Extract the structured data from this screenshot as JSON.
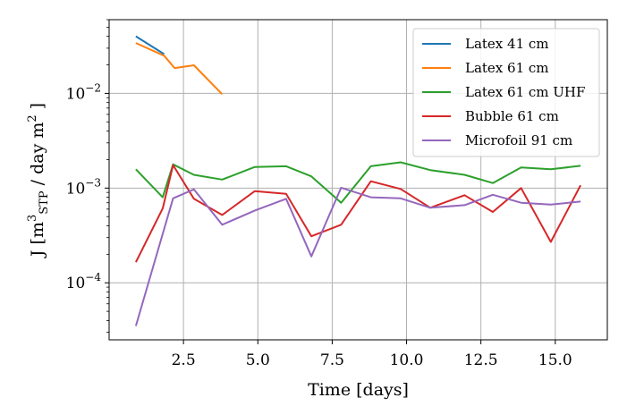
{
  "chart_data": {
    "type": "line",
    "title": "",
    "xlabel": "Time [days]",
    "ylabel": "J [m3STP / day m2 ]",
    "ylabel_parts": {
      "prefix": "J [m",
      "sup_stp": "3",
      "sub_stp": "STP",
      "middle": " / day m",
      "sup_m": "2",
      "suffix": " ]"
    },
    "xlim": [
      0.0,
      16.75
    ],
    "ylim": [
      2.5e-05,
      0.06
    ],
    "yscale": "log",
    "grid": true,
    "legend_position": "top-right",
    "x_ticks": [
      2.5,
      5.0,
      7.5,
      10.0,
      12.5,
      15.0
    ],
    "x_tick_labels": [
      "2.5",
      "5.0",
      "7.5",
      "10.0",
      "12.5",
      "15.0"
    ],
    "y_ticks": [
      {
        "value": 0.01,
        "base": "10",
        "exp": "−2"
      },
      {
        "value": 0.001,
        "base": "10",
        "exp": "−3"
      },
      {
        "value": 0.0001,
        "base": "10",
        "exp": "−4"
      }
    ],
    "series": [
      {
        "name": "Latex 41 cm",
        "color": "#1f77b4",
        "x": [
          0.9,
          1.85
        ],
        "y": [
          0.04,
          0.026
        ]
      },
      {
        "name": "Latex 61 cm",
        "color": "#ff7f0e",
        "x": [
          0.9,
          1.85,
          2.2,
          2.85,
          3.8
        ],
        "y": [
          0.034,
          0.025,
          0.0185,
          0.0198,
          0.0098
        ]
      },
      {
        "name": "Latex 61 cm UHF",
        "color": "#2ca02c",
        "x": [
          0.9,
          1.8,
          2.15,
          2.85,
          3.8,
          4.9,
          5.95,
          6.8,
          7.8,
          8.8,
          9.8,
          10.8,
          11.95,
          12.9,
          13.85,
          14.85,
          15.85
        ],
        "y": [
          0.00158,
          0.0008,
          0.00178,
          0.00138,
          0.00123,
          0.00167,
          0.0017,
          0.00133,
          0.0007,
          0.0017,
          0.00187,
          0.00155,
          0.00138,
          0.00113,
          0.00165,
          0.00158,
          0.00172
        ]
      },
      {
        "name": "Bubble 61 cm",
        "color": "#d62728",
        "x": [
          0.9,
          1.8,
          2.15,
          2.85,
          3.8,
          4.9,
          5.95,
          6.8,
          7.8,
          8.8,
          9.8,
          10.8,
          11.95,
          12.9,
          13.85,
          14.85,
          15.85
        ],
        "y": [
          0.000165,
          0.00061,
          0.00175,
          0.00077,
          0.00052,
          0.00093,
          0.00087,
          0.00031,
          0.00041,
          0.00118,
          0.00098,
          0.00062,
          0.00084,
          0.00056,
          0.001,
          0.00027,
          0.00107
        ]
      },
      {
        "name": "Microfoil 91 cm",
        "color": "#9467bd",
        "x": [
          0.9,
          2.15,
          2.85,
          3.8,
          4.9,
          5.95,
          6.8,
          7.8,
          8.8,
          9.8,
          10.8,
          11.95,
          12.9,
          13.85,
          14.85,
          15.85
        ],
        "y": [
          3.5e-05,
          0.00078,
          0.00097,
          0.00041,
          0.00058,
          0.00077,
          0.00019,
          0.00101,
          0.0008,
          0.00078,
          0.00062,
          0.00066,
          0.00085,
          0.0007,
          0.00067,
          0.00072
        ]
      }
    ]
  }
}
